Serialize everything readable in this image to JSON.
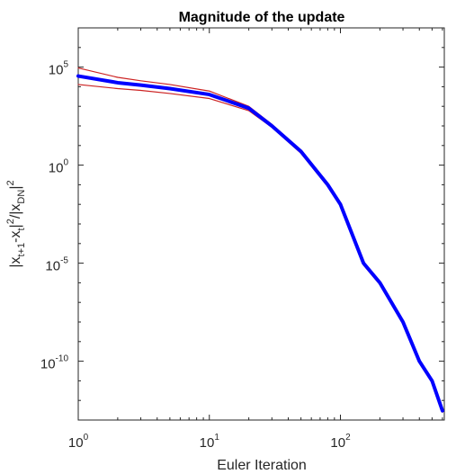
{
  "chart_data": {
    "type": "line",
    "title": "Magnitude of the update",
    "xlabel": "Euler Iteration",
    "ylabel": {
      "parts": [
        {
          "text": "|x",
          "style": "normal"
        },
        {
          "text": "t+1",
          "style": "sub"
        },
        {
          "text": "-x",
          "style": "normal"
        },
        {
          "text": "t",
          "style": "sub"
        },
        {
          "text": "|",
          "style": "normal"
        },
        {
          "text": "2",
          "style": "sup"
        },
        {
          "text": "/|x",
          "style": "normal"
        },
        {
          "text": "DN",
          "style": "sub"
        },
        {
          "text": "|",
          "style": "normal"
        },
        {
          "text": "2",
          "style": "sup"
        }
      ]
    },
    "x_scale": "log",
    "y_scale": "log",
    "xlim": [
      1,
      620
    ],
    "ylim": [
      1e-13,
      10000000.0
    ],
    "x_ticks": [
      {
        "value": 1,
        "base": "10",
        "exp": "0"
      },
      {
        "value": 10,
        "base": "10",
        "exp": "1"
      },
      {
        "value": 100,
        "base": "10",
        "exp": "2"
      }
    ],
    "y_ticks": [
      {
        "value": 100000.0,
        "base": "10",
        "exp": "5"
      },
      {
        "value": 1,
        "base": "10",
        "exp": "0"
      },
      {
        "value": 1e-05,
        "base": "10",
        "exp": "-5"
      },
      {
        "value": 1e-10,
        "base": "10",
        "exp": "-10"
      }
    ],
    "grid": false,
    "box": true,
    "series": [
      {
        "role": "mean",
        "color": "#0000ff",
        "x": [
          1,
          2,
          3,
          5,
          10,
          20,
          30,
          50,
          80,
          100,
          150,
          200,
          300,
          400,
          500,
          600
        ],
        "y": [
          35000,
          16000,
          12000,
          8000,
          4000,
          800,
          100,
          5,
          0.1,
          0.01,
          1e-05,
          1e-06,
          1e-08,
          1e-10,
          1e-11,
          3e-13
        ]
      },
      {
        "role": "upper-bound",
        "color": "#cc2222",
        "x": [
          1,
          2,
          3,
          5,
          10,
          20,
          30,
          50,
          80,
          100,
          150,
          200,
          300,
          400,
          500,
          600
        ],
        "y": [
          90000,
          30000,
          20000,
          13000,
          6000,
          1000,
          120,
          6,
          0.12,
          0.012,
          1.2e-05,
          1.2e-06,
          1.2e-08,
          1.2e-10,
          1.2e-11,
          3.5e-13
        ]
      },
      {
        "role": "lower-bound",
        "color": "#cc2222",
        "x": [
          1,
          2,
          3,
          5,
          10,
          20,
          30,
          50,
          80,
          100,
          150,
          200,
          300,
          400,
          500,
          600
        ],
        "y": [
          13000,
          8000,
          6500,
          4500,
          2500,
          600,
          85,
          4,
          0.08,
          0.008,
          8e-06,
          8e-07,
          8e-09,
          8e-11,
          8e-12,
          2.5e-13
        ]
      }
    ]
  }
}
